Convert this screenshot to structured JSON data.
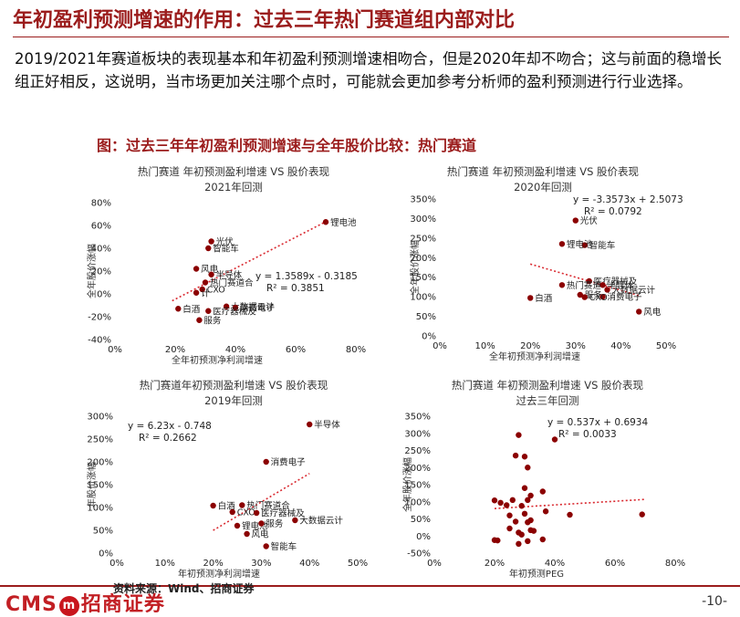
{
  "page": {
    "title": "年初盈利预测增速的作用：过去三年热门赛道组内部对比",
    "paragraph": "2019/2021年赛道板块的表现基本和年初盈利预测增速相吻合，但是2020年却不吻合；这与前面的稳增长组正好相反，这说明，当市场更加关注哪个点时，可能就会更加参考分析师的盈利预测进行行业选择。",
    "figure_title": "图：过去三年年初盈利预测增速与全年股价比较：热门赛道",
    "source": "资料来源：Wind、招商证券",
    "page_number": "-10-",
    "logo_left": "CMS",
    "logo_mark": "m",
    "logo_right": "招商证券"
  },
  "colors": {
    "accent": "#9b1c1c",
    "point": "#8b0000",
    "trend": "#d9282f"
  },
  "chart_data": [
    {
      "id": "c2021",
      "type": "scatter",
      "title": "热门赛道 年初预测盈利增速 VS 股价表现",
      "subtitle": "2021年回测",
      "xlabel": "全年初预测净利润增速",
      "ylabel": "全年股价涨幅",
      "xlim": [
        0,
        0.8
      ],
      "ylim": [
        -0.4,
        0.8
      ],
      "xticks": [
        "0%",
        "20%",
        "40%",
        "60%",
        "80%"
      ],
      "yticks": [
        "80%",
        "60%",
        "40%",
        "20%",
        "0%",
        "-20%",
        "-40%"
      ],
      "equation": "y = 1.3589x - 0.3185",
      "r2": "R² = 0.3851",
      "trend": {
        "x0": 0.19,
        "x1": 0.7,
        "slope": 1.3589,
        "intercept": -0.3185
      },
      "points": [
        {
          "x": 0.7,
          "y": 0.63,
          "label": "锂电池"
        },
        {
          "x": 0.32,
          "y": 0.46,
          "label": "光伏"
        },
        {
          "x": 0.31,
          "y": 0.4,
          "label": "智能车"
        },
        {
          "x": 0.27,
          "y": 0.22,
          "label": "风电"
        },
        {
          "x": 0.32,
          "y": 0.17,
          "label": "半导体"
        },
        {
          "x": 0.3,
          "y": 0.1,
          "label": "热门赛道合"
        },
        {
          "x": 0.29,
          "y": 0.04,
          "label": "CXO"
        },
        {
          "x": 0.27,
          "y": 0.01,
          "label": "计"
        },
        {
          "x": 0.21,
          "y": -0.13,
          "label": "白酒"
        },
        {
          "x": 0.37,
          "y": -0.11,
          "label": "大数据云计"
        },
        {
          "x": 0.4,
          "y": -0.12,
          "label": "消费电子"
        },
        {
          "x": 0.31,
          "y": -0.15,
          "label": "医疗器械及"
        },
        {
          "x": 0.28,
          "y": -0.23,
          "label": "服务"
        }
      ]
    },
    {
      "id": "c2020",
      "type": "scatter",
      "title": "热门赛道 年初预测盈利增速 VS 股价表现",
      "subtitle": "2020年回测",
      "xlabel": "全年初预测净利润增速",
      "ylabel": "全年股价涨幅",
      "xlim": [
        0,
        0.5
      ],
      "ylim": [
        0,
        3.5
      ],
      "xticks": [
        "0%",
        "10%",
        "20%",
        "30%",
        "40%",
        "50%"
      ],
      "yticks": [
        "350%",
        "300%",
        "250%",
        "200%",
        "150%",
        "100%",
        "50%",
        "0%"
      ],
      "equation": "y = -3.3573x + 2.5073",
      "r2": "R² = 0.0792",
      "trend": {
        "x0": 0.2,
        "x1": 0.44,
        "slope": -3.3573,
        "intercept": 2.5073
      },
      "points": [
        {
          "x": 0.3,
          "y": 2.95,
          "label": "光伏"
        },
        {
          "x": 0.32,
          "y": 2.32,
          "label": "智能车"
        },
        {
          "x": 0.27,
          "y": 2.35,
          "label": "锂电池"
        },
        {
          "x": 0.33,
          "y": 1.4,
          "label": "医疗器械及"
        },
        {
          "x": 0.36,
          "y": 1.3,
          "label": "半导体"
        },
        {
          "x": 0.37,
          "y": 1.18,
          "label": "大数据云计"
        },
        {
          "x": 0.31,
          "y": 1.05,
          "label": "服务"
        },
        {
          "x": 0.36,
          "y": 1.0,
          "label": "消费电子"
        },
        {
          "x": 0.27,
          "y": 1.3,
          "label": "热门赛道"
        },
        {
          "x": 0.2,
          "y": 0.97,
          "label": "白酒"
        },
        {
          "x": 0.32,
          "y": 0.99,
          "label": "CXO"
        },
        {
          "x": 0.44,
          "y": 0.62,
          "label": "风电"
        }
      ]
    },
    {
      "id": "c2019",
      "type": "scatter",
      "title": "热门赛道年初预测盈利增速 VS 股价表现",
      "subtitle": "2019年回测",
      "xlabel": "年初预测净利润增速",
      "ylabel": "年股价涨幅",
      "xlim": [
        0,
        0.5
      ],
      "ylim": [
        0,
        3.0
      ],
      "xticks": [
        "0%",
        "10%",
        "20%",
        "30%",
        "40%",
        "50%"
      ],
      "yticks": [
        "300%",
        "250%",
        "200%",
        "150%",
        "100%",
        "50%",
        "0%"
      ],
      "equation": "y = 6.23x - 0.748",
      "r2": "R² = 0.2662",
      "trend": {
        "x0": 0.2,
        "x1": 0.4,
        "slope": 6.23,
        "intercept": -0.748
      },
      "points": [
        {
          "x": 0.4,
          "y": 2.82,
          "label": "半导体"
        },
        {
          "x": 0.31,
          "y": 2.0,
          "label": "消费电子"
        },
        {
          "x": 0.2,
          "y": 1.04,
          "label": "白酒"
        },
        {
          "x": 0.26,
          "y": 1.05,
          "label": "热门赛道合"
        },
        {
          "x": 0.24,
          "y": 0.9,
          "label": "CXO"
        },
        {
          "x": 0.29,
          "y": 0.88,
          "label": "医疗器械及"
        },
        {
          "x": 0.37,
          "y": 0.72,
          "label": "大数据云计"
        },
        {
          "x": 0.25,
          "y": 0.6,
          "label": "锂电池"
        },
        {
          "x": 0.3,
          "y": 0.65,
          "label": "服务"
        },
        {
          "x": 0.27,
          "y": 0.42,
          "label": "风电"
        },
        {
          "x": 0.31,
          "y": 0.15,
          "label": "智能车"
        }
      ]
    },
    {
      "id": "cpeg",
      "type": "scatter",
      "title": "热门赛道 年初预测盈利增速 VS 股价表现",
      "subtitle": "过去三年回测",
      "xlabel": "年初预测PEG",
      "ylabel": "全年股价涨幅",
      "xlim": [
        0,
        0.8
      ],
      "ylim": [
        -0.5,
        3.5
      ],
      "xticks": [
        "0%",
        "20%",
        "40%",
        "60%",
        "80%"
      ],
      "yticks": [
        "350%",
        "300%",
        "250%",
        "200%",
        "150%",
        "100%",
        "50%",
        "0%",
        "-50%"
      ],
      "equation": "y = 0.537x + 0.6934",
      "r2": "R² = 0.0033",
      "trend": {
        "x0": 0.2,
        "x1": 0.7,
        "slope": 0.537,
        "intercept": 0.6934
      },
      "points": [
        {
          "x": 0.28,
          "y": 2.95,
          "label": ""
        },
        {
          "x": 0.4,
          "y": 2.82,
          "label": ""
        },
        {
          "x": 0.27,
          "y": 2.35,
          "label": ""
        },
        {
          "x": 0.3,
          "y": 2.32,
          "label": ""
        },
        {
          "x": 0.31,
          "y": 2.0,
          "label": ""
        },
        {
          "x": 0.3,
          "y": 1.4,
          "label": ""
        },
        {
          "x": 0.36,
          "y": 1.3,
          "label": ""
        },
        {
          "x": 0.32,
          "y": 1.18,
          "label": ""
        },
        {
          "x": 0.2,
          "y": 1.04,
          "label": ""
        },
        {
          "x": 0.26,
          "y": 1.05,
          "label": ""
        },
        {
          "x": 0.31,
          "y": 1.05,
          "label": ""
        },
        {
          "x": 0.24,
          "y": 0.9,
          "label": ""
        },
        {
          "x": 0.29,
          "y": 0.88,
          "label": ""
        },
        {
          "x": 0.22,
          "y": 0.97,
          "label": ""
        },
        {
          "x": 0.37,
          "y": 0.72,
          "label": ""
        },
        {
          "x": 0.25,
          "y": 0.6,
          "label": ""
        },
        {
          "x": 0.45,
          "y": 0.62,
          "label": ""
        },
        {
          "x": 0.69,
          "y": 0.63,
          "label": ""
        },
        {
          "x": 0.3,
          "y": 0.65,
          "label": ""
        },
        {
          "x": 0.27,
          "y": 0.42,
          "label": ""
        },
        {
          "x": 0.32,
          "y": 0.46,
          "label": ""
        },
        {
          "x": 0.31,
          "y": 0.4,
          "label": ""
        },
        {
          "x": 0.25,
          "y": 0.22,
          "label": ""
        },
        {
          "x": 0.32,
          "y": 0.17,
          "label": ""
        },
        {
          "x": 0.28,
          "y": 0.1,
          "label": ""
        },
        {
          "x": 0.29,
          "y": 0.04,
          "label": ""
        },
        {
          "x": 0.36,
          "y": -0.1,
          "label": ""
        },
        {
          "x": 0.21,
          "y": -0.13,
          "label": ""
        },
        {
          "x": 0.31,
          "y": -0.15,
          "label": ""
        },
        {
          "x": 0.28,
          "y": -0.23,
          "label": ""
        },
        {
          "x": 0.2,
          "y": -0.12,
          "label": ""
        },
        {
          "x": 0.33,
          "y": 0.15,
          "label": ""
        }
      ]
    }
  ]
}
